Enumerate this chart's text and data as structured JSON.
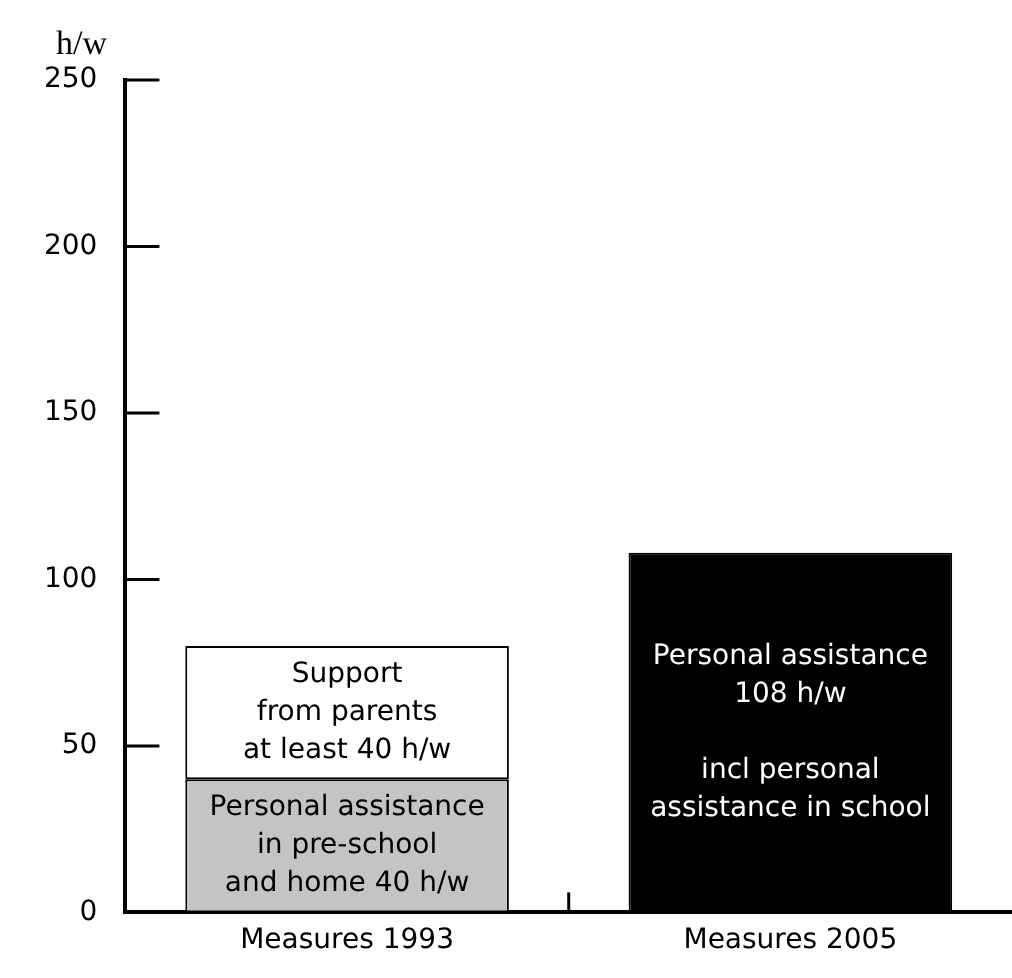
{
  "chart_data": {
    "type": "bar",
    "stacked": true,
    "ylabel": "h/w",
    "categories": [
      "Measures 1993",
      "Measures 2005"
    ],
    "series": [
      {
        "name": "Personal assistance\nin pre-school\nand home 40 h/w",
        "color": "#c3c4c6",
        "values": [
          40,
          null
        ]
      },
      {
        "name": "Support\nfrom parents\nat least 40 h/w",
        "color": "#ffffff",
        "values": [
          40,
          null
        ]
      },
      {
        "name": "Personal assistance\n108 h/w\n\nincl personal\nassistance in school",
        "color": "#000000",
        "values": [
          null,
          108
        ]
      }
    ],
    "ylim": [
      0,
      250
    ],
    "yticks": [
      0,
      50,
      100,
      150,
      200,
      250
    ],
    "grid": false,
    "legend": false
  }
}
